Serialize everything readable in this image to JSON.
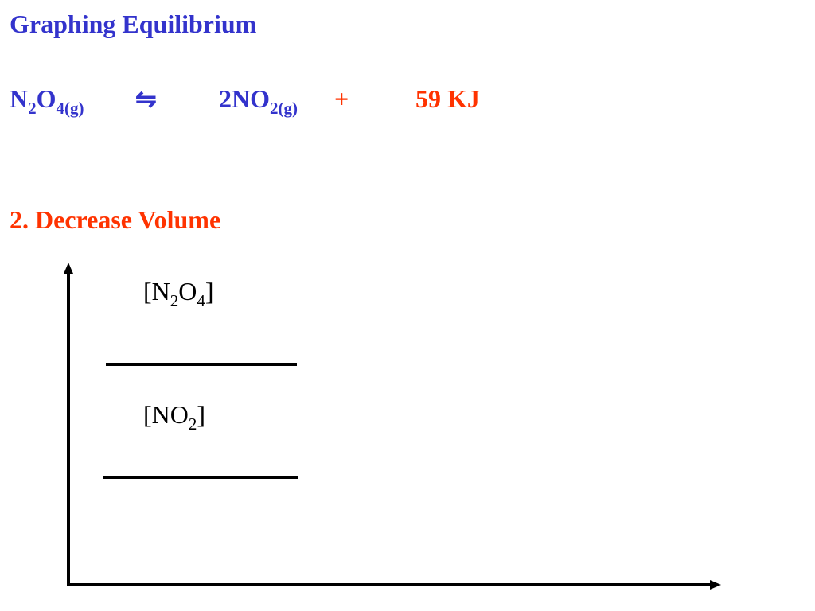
{
  "header": {
    "title": "Graphing Equilibrium"
  },
  "equation": {
    "reactant": [
      "N",
      "2",
      "O",
      "4(g)"
    ],
    "arrow": "⇋",
    "product": [
      "2NO",
      "2(g)"
    ],
    "plus": "+",
    "energy": "59 KJ"
  },
  "condition": "2. Decrease Volume",
  "graph": {
    "labels": [
      [
        "[N",
        "2",
        "O",
        "4",
        "]"
      ],
      [
        "[NO",
        "2",
        "]"
      ]
    ]
  }
}
